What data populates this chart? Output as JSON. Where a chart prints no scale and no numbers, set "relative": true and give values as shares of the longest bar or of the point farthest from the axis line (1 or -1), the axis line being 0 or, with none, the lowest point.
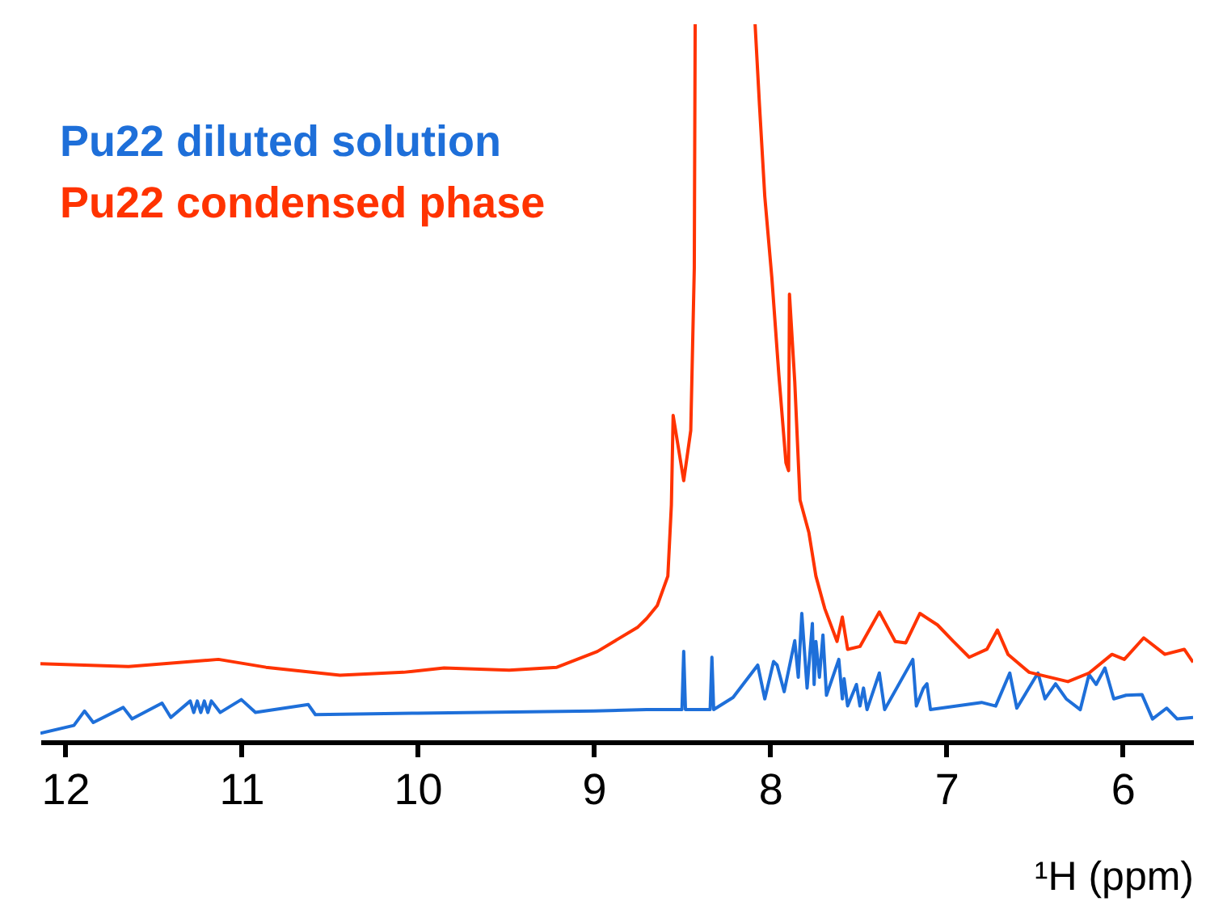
{
  "chart_data": {
    "type": "line",
    "relative": true,
    "xlabel": "¹H (ppm)",
    "xlim": [
      12.14,
      5.6
    ],
    "xticks": [
      12,
      11,
      10,
      9,
      8,
      7,
      6
    ],
    "legend": "top left",
    "grid": false,
    "marker": "none",
    "line_style": "solid",
    "series": [
      {
        "name": "Pu22 diluted solution",
        "color": "#1e6fd9",
        "x": [
          12.14,
          11.95,
          11.89,
          11.84,
          11.67,
          11.62,
          11.45,
          11.4,
          11.29,
          11.27,
          11.25,
          11.23,
          11.21,
          11.19,
          11.17,
          11.12,
          11.0,
          10.92,
          10.62,
          10.58,
          10.0,
          9.0,
          8.7,
          8.5,
          8.49,
          8.48,
          8.34,
          8.33,
          8.32,
          8.21,
          8.07,
          8.03,
          7.98,
          7.96,
          7.92,
          7.86,
          7.84,
          7.82,
          7.79,
          7.76,
          7.75,
          7.74,
          7.72,
          7.7,
          7.68,
          7.61,
          7.59,
          7.58,
          7.56,
          7.51,
          7.49,
          7.47,
          7.45,
          7.38,
          7.35,
          7.19,
          7.17,
          7.13,
          7.11,
          7.09,
          6.8,
          6.72,
          6.64,
          6.6,
          6.48,
          6.44,
          6.38,
          6.32,
          6.24,
          6.19,
          6.15,
          6.1,
          6.05,
          5.98,
          5.89,
          5.83,
          5.75,
          5.69,
          5.6
        ],
        "values": [
          0.012,
          0.023,
          0.043,
          0.027,
          0.048,
          0.032,
          0.054,
          0.034,
          0.057,
          0.041,
          0.057,
          0.041,
          0.057,
          0.041,
          0.057,
          0.041,
          0.059,
          0.041,
          0.052,
          0.038,
          0.04,
          0.043,
          0.045,
          0.045,
          0.126,
          0.045,
          0.045,
          0.118,
          0.045,
          0.062,
          0.107,
          0.06,
          0.112,
          0.107,
          0.07,
          0.141,
          0.09,
          0.179,
          0.075,
          0.165,
          0.08,
          0.14,
          0.09,
          0.149,
          0.065,
          0.115,
          0.06,
          0.088,
          0.05,
          0.08,
          0.05,
          0.075,
          0.045,
          0.096,
          0.045,
          0.115,
          0.05,
          0.075,
          0.081,
          0.045,
          0.055,
          0.05,
          0.096,
          0.047,
          0.096,
          0.06,
          0.081,
          0.06,
          0.045,
          0.094,
          0.08,
          0.103,
          0.06,
          0.065,
          0.066,
          0.032,
          0.047,
          0.032,
          0.034
        ]
      },
      {
        "name": "Pu22 condensed phase",
        "color": "#ff3300",
        "x": [
          12.14,
          11.64,
          11.13,
          10.86,
          10.44,
          10.08,
          9.85,
          9.48,
          9.21,
          8.98,
          8.75,
          8.7,
          8.64,
          8.58,
          8.56,
          8.55,
          8.49,
          8.45,
          8.43,
          8.425,
          8.3,
          8.085,
          8.06,
          8.03,
          7.99,
          7.95,
          7.91,
          7.895,
          7.89,
          7.86,
          7.83,
          7.78,
          7.74,
          7.69,
          7.62,
          7.59,
          7.56,
          7.49,
          7.38,
          7.29,
          7.23,
          7.15,
          7.05,
          6.96,
          6.87,
          6.77,
          6.71,
          6.65,
          6.53,
          6.31,
          6.19,
          6.06,
          5.99,
          5.88,
          5.76,
          5.65,
          5.6
        ],
        "values": [
          0.109,
          0.105,
          0.115,
          0.104,
          0.093,
          0.097,
          0.103,
          0.1,
          0.104,
          0.126,
          0.16,
          0.172,
          0.19,
          0.231,
          0.33,
          0.455,
          0.364,
          0.434,
          0.66,
          1,
          null,
          1,
          0.887,
          0.76,
          0.647,
          0.511,
          0.389,
          0.378,
          0.624,
          0.502,
          0.337,
          0.292,
          0.231,
          0.186,
          0.14,
          0.174,
          0.129,
          0.133,
          0.181,
          0.14,
          0.138,
          0.179,
          0.163,
          0.14,
          0.118,
          0.129,
          0.156,
          0.122,
          0.097,
          0.084,
          0.096,
          0.122,
          0.115,
          0.145,
          0.122,
          0.129,
          0.111
        ]
      }
    ]
  }
}
